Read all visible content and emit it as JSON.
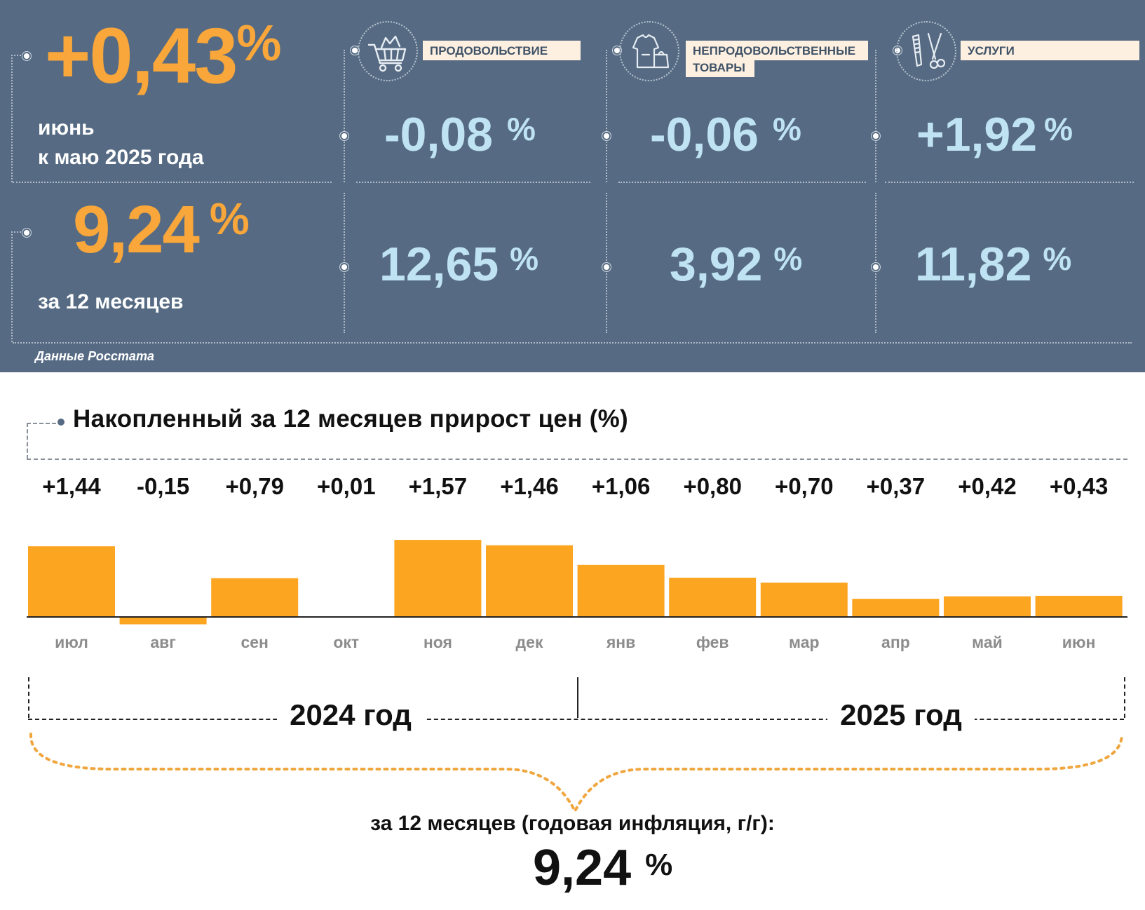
{
  "summary": {
    "monthly_value": "+0,43",
    "monthly_caption_line1": "июнь",
    "monthly_caption_line2": "к маю 2025 года",
    "annual_value": "9,24",
    "annual_caption": "за 12 месяцев",
    "percent_sign": "%",
    "source": "Данные Росстата"
  },
  "categories": [
    {
      "label": "ПРОДОВОЛЬСТВИЕ",
      "icon": "shopping-cart-icon",
      "monthly": "-0,08",
      "annual": "12,65"
    },
    {
      "label_line1": "НЕПРОДОВОЛЬСТВЕННЫЕ",
      "label_line2": "ТОВАРЫ",
      "icon": "clothing-icon",
      "monthly": "-0,06",
      "annual": "3,92"
    },
    {
      "label": "УСЛУГИ",
      "icon": "scissors-comb-icon",
      "monthly": "+1,92",
      "annual": "11,82"
    }
  ],
  "chart_title": "Накопленный за 12 месяцев прирост цен (%)",
  "chart_data": {
    "type": "bar",
    "title": "Накопленный за 12 месяцев прирост цен (%)",
    "categories": [
      "июл",
      "авг",
      "сен",
      "окт",
      "ноя",
      "дек",
      "янв",
      "фев",
      "мар",
      "апр",
      "май",
      "июн"
    ],
    "values": [
      1.44,
      -0.15,
      0.79,
      0.01,
      1.57,
      1.46,
      1.06,
      0.8,
      0.7,
      0.37,
      0.42,
      0.43
    ],
    "value_labels": [
      "+1,44",
      "-0,15",
      "+0,79",
      "+0,01",
      "+1,57",
      "+1,46",
      "+1,06",
      "+0,80",
      "+0,70",
      "+0,37",
      "+0,42",
      "+0,43"
    ],
    "years": [
      "2024 год",
      "2025 год"
    ],
    "bar_color": "#fca520",
    "grid": false
  },
  "annual_note": "за 12 месяцев (годовая инфляция, г/г):",
  "annual_total": "9,24",
  "colors": {
    "panel": "#566b83",
    "orange": "#f9a63a",
    "light_blue": "#bfe3f3",
    "label_bg": "#fdf0e1"
  }
}
